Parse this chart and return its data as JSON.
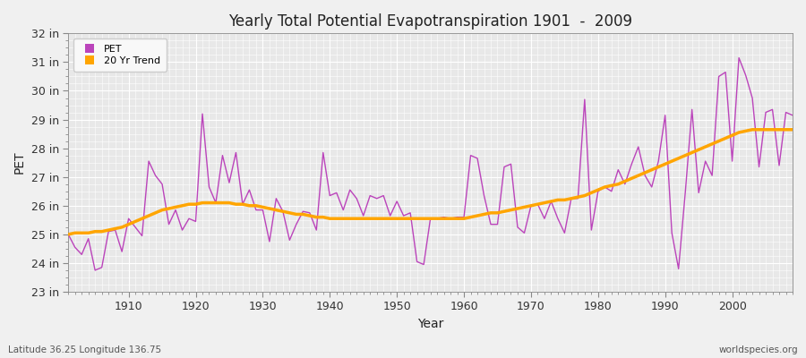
{
  "title": "Yearly Total Potential Evapotranspiration 1901  -  2009",
  "ylabel": "PET",
  "xlabel": "Year",
  "bottom_left_label": "Latitude 36.25 Longitude 136.75",
  "bottom_right_label": "worldspecies.org",
  "ylim": [
    23,
    32
  ],
  "yticks": [
    23,
    24,
    25,
    26,
    27,
    28,
    29,
    30,
    31,
    32
  ],
  "ytick_labels": [
    "23 in",
    "24 in",
    "25 in",
    "26 in",
    "27 in",
    "28 in",
    "29 in",
    "30 in",
    "31 in",
    "32 in"
  ],
  "xlim": [
    1901,
    2009
  ],
  "xticks": [
    1910,
    1920,
    1930,
    1940,
    1950,
    1960,
    1970,
    1980,
    1990,
    2000
  ],
  "pet_color": "#BB44BB",
  "trend_color": "#FFA500",
  "fig_bg_color": "#F0F0F0",
  "plot_bg_color": "#E8E8E8",
  "grid_color": "#FFFFFF",
  "pet_data": {
    "1901": 25.0,
    "1902": 24.55,
    "1903": 24.3,
    "1904": 24.85,
    "1905": 23.75,
    "1906": 23.85,
    "1907": 25.1,
    "1908": 25.15,
    "1909": 24.4,
    "1910": 25.55,
    "1911": 25.25,
    "1912": 24.95,
    "1913": 27.55,
    "1914": 27.05,
    "1915": 26.75,
    "1916": 25.35,
    "1917": 25.85,
    "1918": 25.15,
    "1919": 25.55,
    "1920": 25.45,
    "1921": 29.2,
    "1922": 26.65,
    "1923": 26.1,
    "1924": 27.75,
    "1925": 26.8,
    "1926": 27.85,
    "1927": 26.05,
    "1928": 26.55,
    "1929": 25.85,
    "1930": 25.85,
    "1931": 24.75,
    "1932": 26.25,
    "1933": 25.8,
    "1934": 24.8,
    "1935": 25.35,
    "1936": 25.8,
    "1937": 25.75,
    "1938": 25.15,
    "1939": 27.85,
    "1940": 26.35,
    "1941": 26.45,
    "1942": 25.85,
    "1943": 26.55,
    "1944": 26.25,
    "1945": 25.65,
    "1946": 26.35,
    "1947": 26.25,
    "1948": 26.35,
    "1949": 25.65,
    "1950": 26.15,
    "1951": 25.65,
    "1952": 25.75,
    "1953": 24.05,
    "1954": 23.95,
    "1955": 25.55,
    "1956": 25.55,
    "1957": 25.6,
    "1958": 25.55,
    "1959": 25.6,
    "1960": 25.6,
    "1961": 27.75,
    "1962": 27.65,
    "1963": 26.35,
    "1964": 25.35,
    "1965": 25.35,
    "1966": 27.35,
    "1967": 27.45,
    "1968": 25.25,
    "1969": 25.05,
    "1970": 26.0,
    "1971": 26.05,
    "1972": 25.55,
    "1973": 26.15,
    "1974": 25.55,
    "1975": 25.05,
    "1976": 26.25,
    "1977": 26.25,
    "1978": 29.7,
    "1979": 25.15,
    "1980": 26.5,
    "1981": 26.65,
    "1982": 26.5,
    "1983": 27.25,
    "1984": 26.75,
    "1985": 27.45,
    "1986": 28.05,
    "1987": 27.05,
    "1988": 26.65,
    "1989": 27.55,
    "1990": 29.15,
    "1991": 25.05,
    "1992": 23.8,
    "1993": 26.45,
    "1994": 29.35,
    "1995": 26.45,
    "1996": 27.55,
    "1997": 27.05,
    "1998": 30.5,
    "1999": 30.65,
    "2000": 27.55,
    "2001": 31.15,
    "2002": 30.55,
    "2003": 29.75,
    "2004": 27.35,
    "2005": 29.25,
    "2006": 29.35,
    "2007": 27.4,
    "2008": 29.25,
    "2009": 29.15
  },
  "trend_data": {
    "1901": 25.0,
    "1902": 25.05,
    "1903": 25.05,
    "1904": 25.05,
    "1905": 25.1,
    "1906": 25.1,
    "1907": 25.15,
    "1908": 25.2,
    "1909": 25.25,
    "1910": 25.35,
    "1911": 25.45,
    "1912": 25.55,
    "1913": 25.65,
    "1914": 25.75,
    "1915": 25.85,
    "1916": 25.9,
    "1917": 25.95,
    "1918": 26.0,
    "1919": 26.05,
    "1920": 26.05,
    "1921": 26.1,
    "1922": 26.1,
    "1923": 26.1,
    "1924": 26.1,
    "1925": 26.1,
    "1926": 26.05,
    "1927": 26.05,
    "1928": 26.0,
    "1929": 26.0,
    "1930": 25.95,
    "1931": 25.9,
    "1932": 25.85,
    "1933": 25.8,
    "1934": 25.75,
    "1935": 25.7,
    "1936": 25.7,
    "1937": 25.65,
    "1938": 25.6,
    "1939": 25.6,
    "1940": 25.55,
    "1941": 25.55,
    "1942": 25.55,
    "1943": 25.55,
    "1944": 25.55,
    "1945": 25.55,
    "1946": 25.55,
    "1947": 25.55,
    "1948": 25.55,
    "1949": 25.55,
    "1950": 25.55,
    "1951": 25.55,
    "1952": 25.55,
    "1953": 25.55,
    "1954": 25.55,
    "1955": 25.55,
    "1956": 25.55,
    "1957": 25.55,
    "1958": 25.55,
    "1959": 25.55,
    "1960": 25.55,
    "1961": 25.6,
    "1962": 25.65,
    "1963": 25.7,
    "1964": 25.75,
    "1965": 25.75,
    "1966": 25.8,
    "1967": 25.85,
    "1968": 25.9,
    "1969": 25.95,
    "1970": 26.0,
    "1971": 26.05,
    "1972": 26.1,
    "1973": 26.15,
    "1974": 26.2,
    "1975": 26.2,
    "1976": 26.25,
    "1977": 26.3,
    "1978": 26.35,
    "1979": 26.45,
    "1980": 26.55,
    "1981": 26.65,
    "1982": 26.7,
    "1983": 26.75,
    "1984": 26.85,
    "1985": 26.95,
    "1986": 27.05,
    "1987": 27.15,
    "1988": 27.25,
    "1989": 27.35,
    "1990": 27.45,
    "1991": 27.55,
    "1992": 27.65,
    "1993": 27.75,
    "1994": 27.85,
    "1995": 27.95,
    "1996": 28.05,
    "1997": 28.15,
    "1998": 28.25,
    "1999": 28.35,
    "2000": 28.45,
    "2001": 28.55,
    "2002": 28.6,
    "2003": 28.65,
    "2004": 28.65,
    "2005": 28.65,
    "2006": 28.65,
    "2007": 28.65,
    "2008": 28.65,
    "2009": 28.65
  }
}
